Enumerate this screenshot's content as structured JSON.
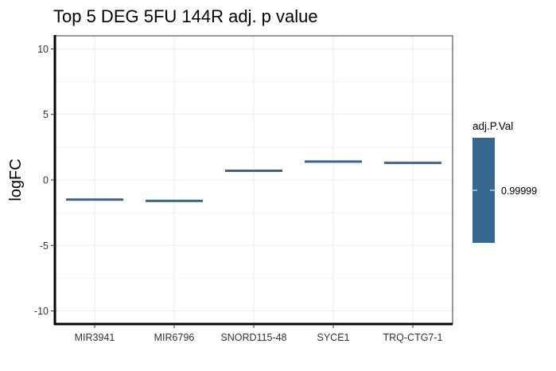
{
  "chart_data": {
    "type": "bar",
    "title": "Top 5 DEG 5FU 144R adj. p value",
    "ylabel": "logFC",
    "ylim": [
      -11,
      11
    ],
    "yticks": [
      -10,
      -5,
      0,
      5,
      10
    ],
    "grid": true,
    "categories": [
      "MIR3941",
      "MIR6796",
      "SNORD115-48",
      "SYCE1",
      "TRQ-CTG7-1"
    ],
    "values": [
      -1.5,
      -1.6,
      0.7,
      1.4,
      1.3
    ],
    "bar_color": "#36678F",
    "legend": {
      "title": "adj.P.Val",
      "label": "0.99999",
      "position": "right",
      "color": "#36678F"
    }
  }
}
